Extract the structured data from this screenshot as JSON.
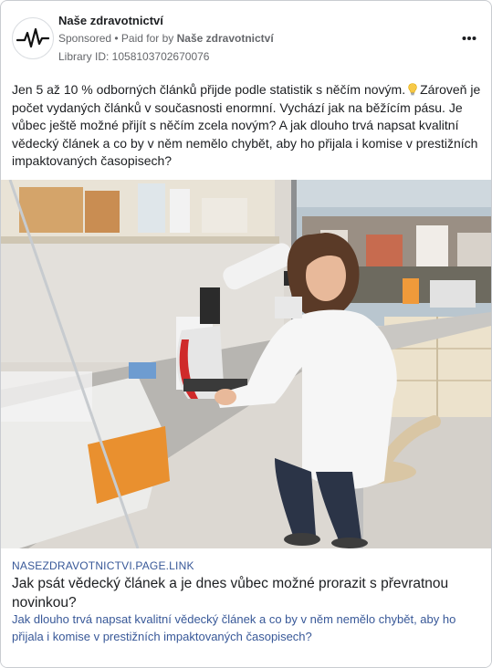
{
  "header": {
    "page_name": "Naše zdravotnictví",
    "sponsored_label": "Sponsored",
    "separator": " • ",
    "paid_for_label": "Paid for by ",
    "paid_by_name": "Naše zdravotnictví",
    "library_id": "Library ID: 1058103702670076",
    "more_icon": "more-horizontal-icon",
    "avatar_icon": "heartbeat-line-icon"
  },
  "post": {
    "text_before_icon": "Jen 5 až 10 % odborných článků přijde podle statistik s něčím novým.",
    "icon": "lightbulb-icon",
    "text_after_icon": "Zároveň je počet vydaných článků v současnosti enormní. Vychází jak na běžícím pásu. Je vůbec ještě možné přijít s něčím zcela novým? A jak dlouho trvá napsat kvalitní vědecký článek a co by v něm nemělo chybět, aby ho přijala i komise v prestižních impaktovaných časopisech?"
  },
  "image": {
    "subject": "scientist-at-microscope-photo"
  },
  "link": {
    "domain": "NASEZDRAVOTNICTVI.PAGE.LINK",
    "title": "Jak psát vědecký článek a je dnes vůbec možné prorazit s převratnou novinkou?",
    "description": "Jak dlouho trvá napsat kvalitní vědecký článek a co by v něm nemělo chybět, aby ho přijala i komise v prestižních impaktovaných časopisech?"
  },
  "colors": {
    "link_blue": "#385898",
    "meta_gray": "#65676b",
    "text": "#1c1e21"
  }
}
